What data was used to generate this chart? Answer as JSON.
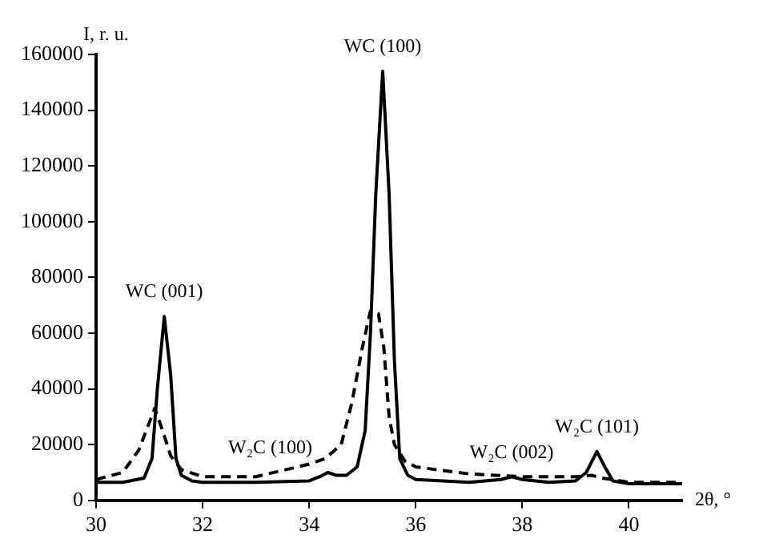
{
  "chart_data": {
    "type": "line",
    "xlabel": "2θ, °",
    "ylabel": "I, r. u.",
    "xlim": [
      30,
      41
    ],
    "xticks": [
      30,
      32,
      34,
      36,
      38,
      40
    ],
    "ylim": [
      0,
      160000
    ],
    "yticks": [
      0,
      20000,
      40000,
      60000,
      80000,
      100000,
      120000,
      140000,
      160000
    ],
    "grid": false,
    "legend": false,
    "marker": "none",
    "series": [
      {
        "color": "#000000",
        "line_style": "solid",
        "x": [
          30,
          30.5,
          30.9,
          31.05,
          31.15,
          31.28,
          31.4,
          31.5,
          31.6,
          31.8,
          32,
          33,
          34,
          34.2,
          34.35,
          34.5,
          34.7,
          34.9,
          35.05,
          35.15,
          35.25,
          35.38,
          35.5,
          35.6,
          35.7,
          35.85,
          36,
          37,
          37.6,
          37.8,
          38,
          38.5,
          39,
          39.2,
          39.4,
          39.55,
          39.7,
          40,
          41
        ],
        "values": [
          6500,
          6500,
          8000,
          15000,
          40000,
          66000,
          45000,
          15000,
          9000,
          7000,
          6500,
          6500,
          7000,
          8500,
          10000,
          9000,
          9000,
          12000,
          25000,
          60000,
          110000,
          154000,
          110000,
          50000,
          15000,
          9000,
          7500,
          6500,
          7500,
          8500,
          7500,
          6500,
          7000,
          10000,
          17500,
          12000,
          7000,
          6000,
          6000
        ]
      },
      {
        "color": "#000000",
        "line_style": "dashed",
        "x": [
          30,
          30.5,
          30.8,
          31,
          31.1,
          31.25,
          31.4,
          31.6,
          32,
          33,
          34,
          34.3,
          34.6,
          34.8,
          35,
          35.15,
          35.3,
          35.4,
          35.5,
          35.6,
          35.8,
          36,
          37,
          38,
          39,
          39.3,
          39.5,
          40,
          41
        ],
        "values": [
          7500,
          10000,
          18000,
          28000,
          33000,
          25000,
          16000,
          11000,
          8500,
          8500,
          13000,
          15000,
          20000,
          35000,
          55000,
          68000,
          67000,
          55000,
          30000,
          20000,
          14000,
          12000,
          9500,
          8500,
          8500,
          9000,
          8000,
          6500,
          6500
        ]
      }
    ],
    "annotations": [
      {
        "text": "WC (001)",
        "x": 31.28,
        "y": 66000
      },
      {
        "text": "W₂C (100)",
        "x": 34.35,
        "y": 10000
      },
      {
        "text": "WC (100)",
        "x": 35.38,
        "y": 154000
      },
      {
        "text": "W₂C (002)",
        "x": 37.8,
        "y": 8500
      },
      {
        "text": "W₂C (101)",
        "x": 39.4,
        "y": 17500
      }
    ]
  }
}
